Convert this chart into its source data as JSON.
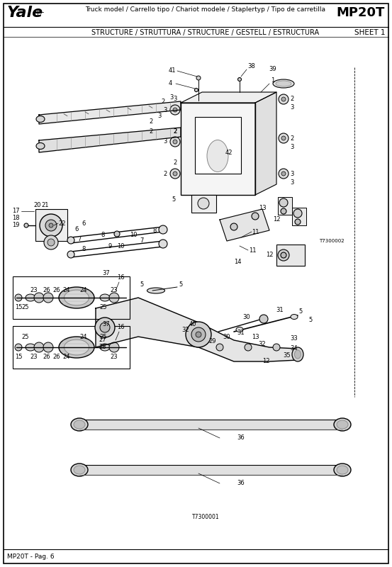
{
  "title_left": "Yale",
  "title_center": "Truck model / Carrello tipo / Chariot modele / Staplertyp / Tipo de carretilla",
  "title_right": "MP20T",
  "subtitle_center": "STRUCTURE / STRUTTURA / STRUCTURE / GESTELL / ESTRUCTURA",
  "subtitle_right": "SHEET 1",
  "footer": "MP20T - Pag. 6",
  "bg_color": "#ffffff",
  "ref1": "T7300002",
  "ref2": "T7300001"
}
